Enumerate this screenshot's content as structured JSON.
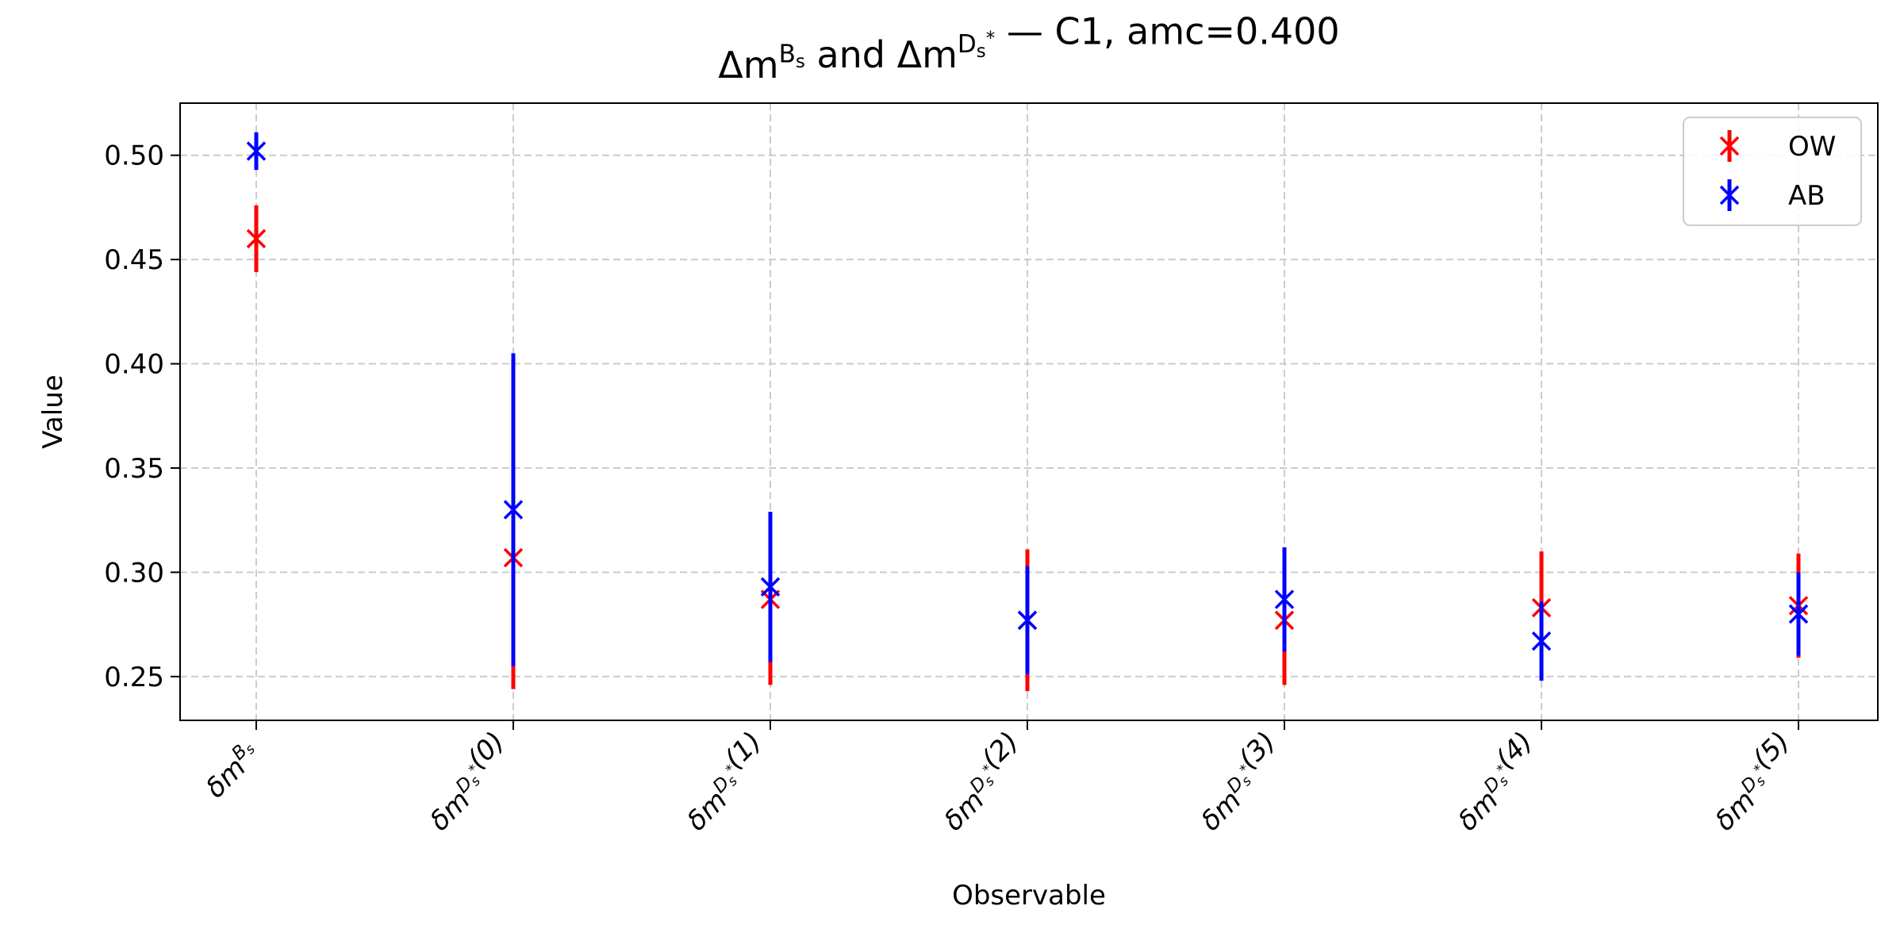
{
  "chart_data": {
    "type": "scatter",
    "title": "Δm^{B_s} and Δm^{D_s^*} — C1, amc=0.400",
    "xlabel": "Observable",
    "ylabel": "Value",
    "categories": [
      "δm^{B_s}",
      "δm^{D_s^*}(0)",
      "δm^{D_s^*}(1)",
      "δm^{D_s^*}(2)",
      "δm^{D_s^*}(3)",
      "δm^{D_s^*}(4)",
      "δm^{D_s^*}(5)"
    ],
    "ylim": [
      0.229,
      0.525
    ],
    "yticks": [
      "0.25",
      "0.30",
      "0.35",
      "0.40",
      "0.45",
      "0.50"
    ],
    "grid": true,
    "legend_position": "top-right",
    "marker": "x",
    "series": [
      {
        "name": "OW",
        "color": "#ff0000",
        "values": [
          0.46,
          0.307,
          0.287,
          0.277,
          0.277,
          0.283,
          0.284
        ],
        "errors": [
          0.016,
          0.063,
          0.041,
          0.034,
          0.031,
          0.027,
          0.025
        ]
      },
      {
        "name": "AB",
        "color": "#0000ff",
        "values": [
          0.502,
          0.33,
          0.293,
          0.277,
          0.287,
          0.267,
          0.28
        ],
        "errors": [
          0.009,
          0.075,
          0.036,
          0.026,
          0.025,
          0.019,
          0.02
        ]
      }
    ]
  }
}
